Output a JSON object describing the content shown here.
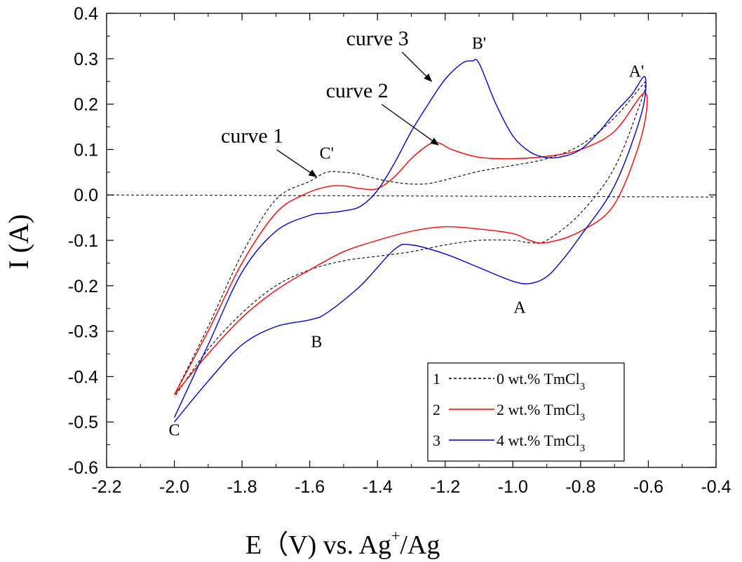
{
  "chart_data": {
    "type": "line",
    "title": "",
    "xlabel": "E（V) vs. Ag",
    "xlabel_sup": "+",
    "xlabel_tail": "/Ag",
    "ylabel": "I (A)",
    "xlim": [
      -2.2,
      -0.4
    ],
    "ylim": [
      -0.6,
      0.4
    ],
    "xticks": [
      -2.2,
      -2.0,
      -1.8,
      -1.6,
      -1.4,
      -1.2,
      -1.0,
      -0.8,
      -0.6,
      -0.4
    ],
    "xtick_labels": [
      "-2.2",
      "-2.0",
      "-1.8",
      "-1.6",
      "-1.4",
      "-1.2",
      "-1.0",
      "-0.8",
      "-0.6",
      "-0.4"
    ],
    "yticks": [
      -0.6,
      -0.5,
      -0.4,
      -0.3,
      -0.2,
      -0.1,
      0.0,
      0.1,
      0.2,
      0.3,
      0.4
    ],
    "ytick_labels": [
      "-0.6",
      "-0.5",
      "-0.4",
      "-0.3",
      "-0.2",
      "-0.1",
      "0.0",
      "0.1",
      "0.2",
      "0.3",
      "0.4"
    ],
    "grid": false,
    "legend_position": "bottom-right",
    "zero_line": 0.0,
    "series": [
      {
        "name": "0 wt.% TmCl",
        "name_sub": "3",
        "legend_num": "1",
        "color": "#000000",
        "style": "dashed",
        "x": [
          -2.0,
          -1.9,
          -1.8,
          -1.7,
          -1.6,
          -1.55,
          -1.5,
          -1.45,
          -1.4,
          -1.35,
          -1.3,
          -1.25,
          -1.2,
          -1.1,
          -1.0,
          -0.9,
          -0.8,
          -0.7,
          -0.62,
          -0.61,
          -0.62,
          -0.7,
          -0.8,
          -0.9,
          -0.95,
          -1.0,
          -1.1,
          -1.2,
          -1.3,
          -1.4,
          -1.5,
          -1.6,
          -1.7,
          -1.8,
          -1.9,
          -2.0
        ],
        "y": [
          -0.44,
          -0.29,
          -0.13,
          -0.01,
          0.03,
          0.05,
          0.05,
          0.045,
          0.035,
          0.028,
          0.024,
          0.025,
          0.033,
          0.052,
          0.065,
          0.08,
          0.11,
          0.17,
          0.24,
          0.245,
          0.21,
          0.06,
          -0.04,
          -0.1,
          -0.105,
          -0.1,
          -0.1,
          -0.11,
          -0.125,
          -0.135,
          -0.145,
          -0.165,
          -0.2,
          -0.26,
          -0.34,
          -0.445
        ]
      },
      {
        "name": "2 wt.% TmCl",
        "name_sub": "3",
        "legend_num": "2",
        "color": "#ff0000",
        "style": "solid",
        "x": [
          -2.0,
          -1.9,
          -1.8,
          -1.7,
          -1.62,
          -1.55,
          -1.5,
          -1.45,
          -1.4,
          -1.35,
          -1.3,
          -1.25,
          -1.22,
          -1.18,
          -1.1,
          -1.0,
          -0.9,
          -0.8,
          -0.7,
          -0.61,
          -0.62,
          -0.7,
          -0.8,
          -0.9,
          -0.95,
          -1.0,
          -1.1,
          -1.2,
          -1.3,
          -1.4,
          -1.5,
          -1.6,
          -1.7,
          -1.8,
          -1.9,
          -2.0
        ],
        "y": [
          -0.44,
          -0.3,
          -0.15,
          -0.04,
          0.0,
          0.018,
          0.02,
          0.014,
          0.014,
          0.04,
          0.08,
          0.11,
          0.115,
          0.1,
          0.083,
          0.08,
          0.085,
          0.1,
          0.14,
          0.225,
          0.13,
          -0.02,
          -0.08,
          -0.105,
          -0.1,
          -0.085,
          -0.075,
          -0.07,
          -0.08,
          -0.1,
          -0.125,
          -0.165,
          -0.21,
          -0.27,
          -0.35,
          -0.44
        ]
      },
      {
        "name": "4 wt.% TmCl",
        "name_sub": "3",
        "legend_num": "3",
        "color": "#0000cc",
        "style": "solid",
        "x": [
          -2.0,
          -1.9,
          -1.8,
          -1.7,
          -1.6,
          -1.55,
          -1.5,
          -1.45,
          -1.4,
          -1.35,
          -1.3,
          -1.25,
          -1.2,
          -1.15,
          -1.12,
          -1.1,
          -1.05,
          -1.0,
          -0.95,
          -0.9,
          -0.85,
          -0.8,
          -0.75,
          -0.7,
          -0.65,
          -0.61,
          -0.62,
          -0.7,
          -0.8,
          -0.85,
          -0.9,
          -0.95,
          -1.0,
          -1.1,
          -1.2,
          -1.3,
          -1.35,
          -1.45,
          -1.55,
          -1.6,
          -1.7,
          -1.8,
          -1.9,
          -2.0
        ],
        "y": [
          -0.49,
          -0.33,
          -0.17,
          -0.08,
          -0.045,
          -0.04,
          -0.035,
          -0.025,
          0.01,
          0.07,
          0.14,
          0.2,
          0.255,
          0.29,
          0.295,
          0.29,
          0.2,
          0.13,
          0.095,
          0.082,
          0.085,
          0.1,
          0.135,
          0.18,
          0.22,
          0.26,
          0.18,
          0.02,
          -0.09,
          -0.14,
          -0.18,
          -0.195,
          -0.19,
          -0.16,
          -0.13,
          -0.11,
          -0.12,
          -0.2,
          -0.26,
          -0.275,
          -0.29,
          -0.33,
          -0.41,
          -0.5
        ]
      }
    ],
    "annotations": [
      {
        "text": "curve 3",
        "x": -1.4,
        "y": 0.33,
        "arrow_to": [
          -1.24,
          0.25
        ]
      },
      {
        "text": "curve 2",
        "x": -1.46,
        "y": 0.215,
        "arrow_to": [
          -1.22,
          0.11
        ]
      },
      {
        "text": "curve 1",
        "x": -1.77,
        "y": 0.115,
        "arrow_to": [
          -1.58,
          0.04
        ]
      },
      {
        "text": "B'",
        "x": -1.1,
        "y": 0.322
      },
      {
        "text": "A'",
        "x": -0.635,
        "y": 0.26
      },
      {
        "text": "C'",
        "x": -1.55,
        "y": 0.08
      },
      {
        "text": "A",
        "x": -0.98,
        "y": -0.26
      },
      {
        "text": "B",
        "x": -1.58,
        "y": -0.335
      },
      {
        "text": "C",
        "x": -2.0,
        "y": -0.53
      }
    ]
  }
}
